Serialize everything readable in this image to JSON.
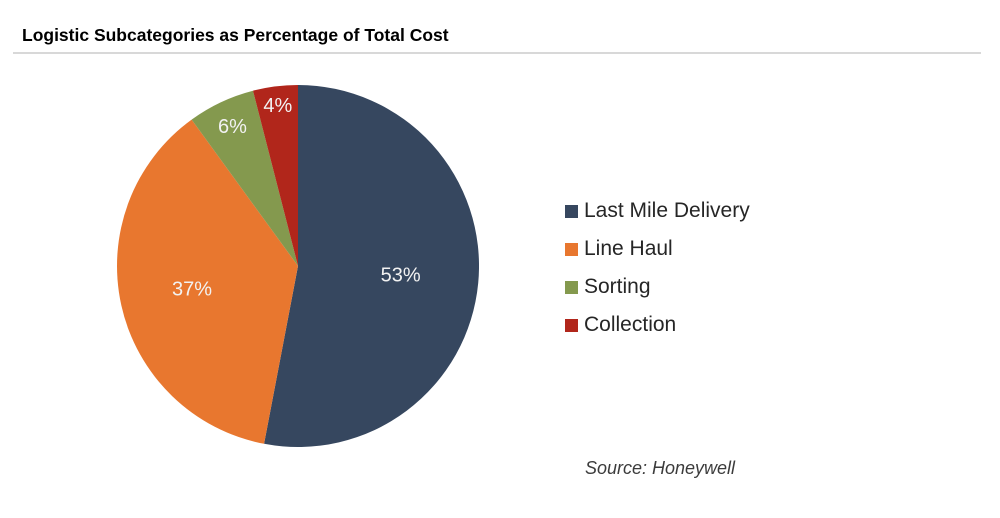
{
  "chart_data": {
    "type": "pie",
    "title": "Logistic Subcategories as Percentage of Total Cost",
    "source": "Source: Honeywell",
    "start_angle_deg": 0,
    "direction": "clockwise",
    "legend_position": "right",
    "data_label_color": "#F2F2F2",
    "title_rule_color": "#D8D8D8",
    "slices": [
      {
        "label": "Last Mile Delivery",
        "value": 53,
        "display": "53%",
        "color": "#36475F",
        "label_radius_fraction": 0.57
      },
      {
        "label": "Line Haul",
        "value": 37,
        "display": "37%",
        "color": "#E8772F",
        "label_radius_fraction": 0.6
      },
      {
        "label": "Sorting",
        "value": 6,
        "display": "6%",
        "color": "#84994E",
        "label_radius_fraction": 0.85
      },
      {
        "label": "Collection",
        "value": 4,
        "display": "4%",
        "color": "#B1261B",
        "label_radius_fraction": 0.89
      }
    ]
  }
}
